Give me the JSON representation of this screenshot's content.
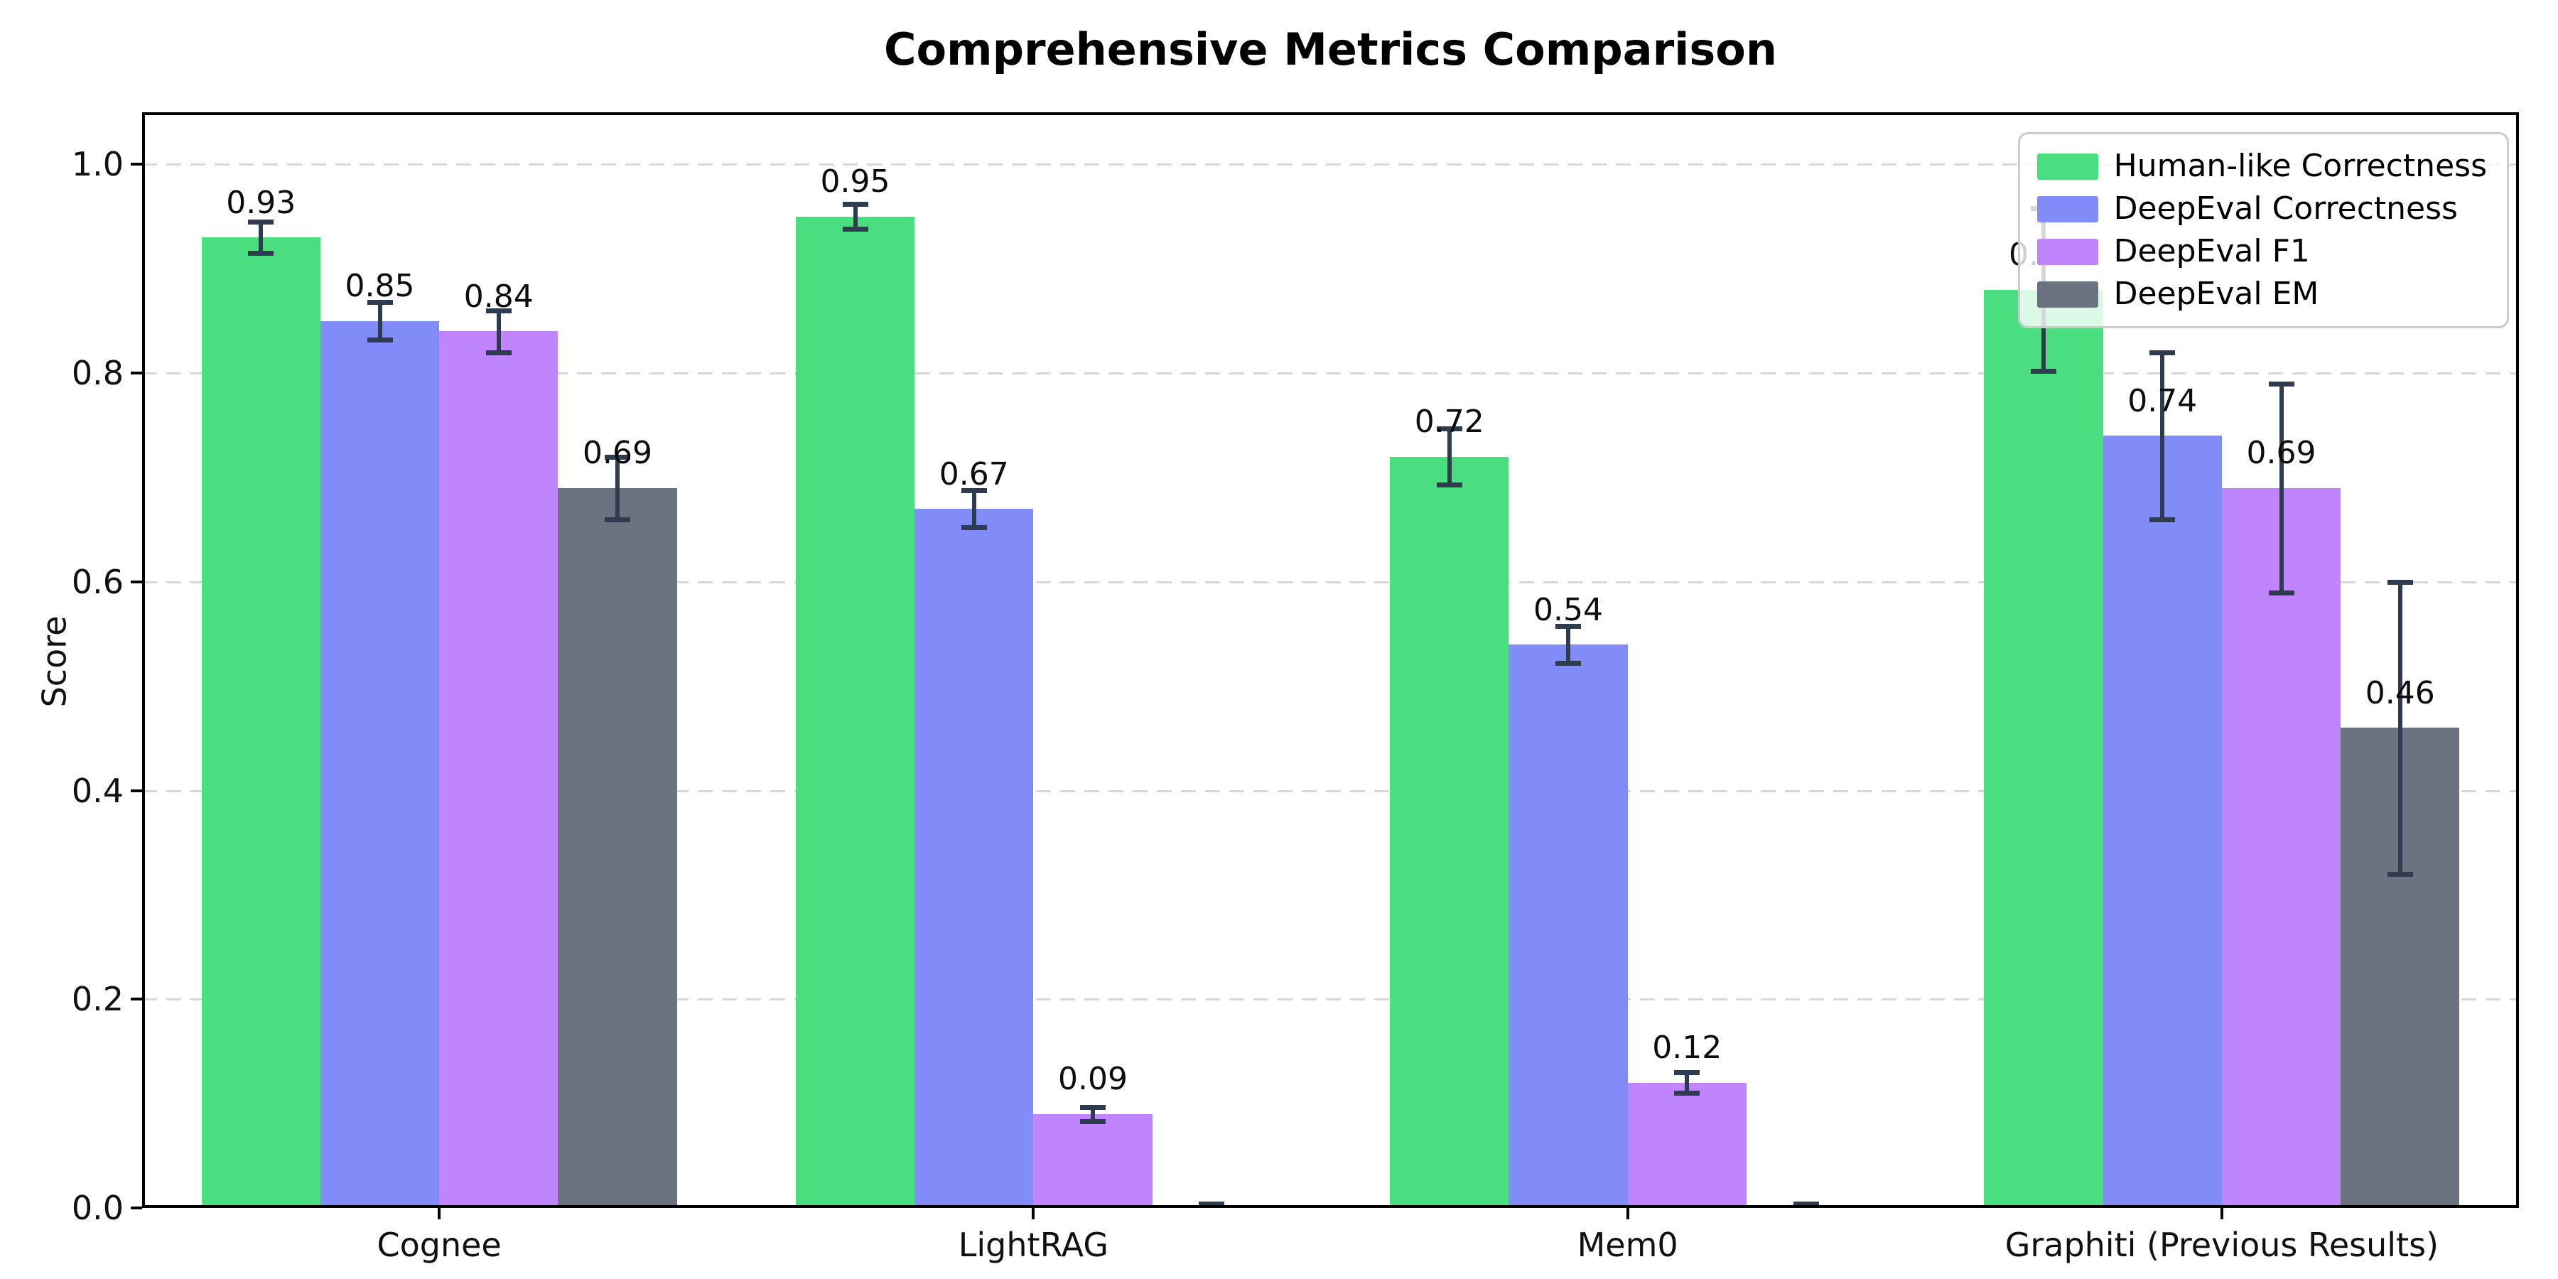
{
  "chart_data": {
    "type": "bar",
    "title": "Comprehensive Metrics Comparison",
    "ylabel": "Score",
    "xlabel": "",
    "categories": [
      "Cognee",
      "LightRAG",
      "Mem0",
      "Graphiti (Previous Results)"
    ],
    "series": [
      {
        "name": "Human-like Correctness",
        "color": "#4ade80",
        "values": [
          0.93,
          0.95,
          0.72,
          0.88
        ],
        "errors": [
          0.015,
          0.012,
          0.027,
          0.078
        ],
        "labels": [
          "0.93",
          "0.95",
          "0.72",
          "0.88"
        ]
      },
      {
        "name": "DeepEval Correctness",
        "color": "#818cf8",
        "values": [
          0.85,
          0.67,
          0.54,
          0.74
        ],
        "errors": [
          0.018,
          0.018,
          0.018,
          0.08
        ],
        "labels": [
          "0.85",
          "0.67",
          "0.54",
          "0.74"
        ]
      },
      {
        "name": "DeepEval F1",
        "color": "#c084fc",
        "values": [
          0.84,
          0.09,
          0.12,
          0.69
        ],
        "errors": [
          0.02,
          0.007,
          0.01,
          0.1
        ],
        "labels": [
          "0.84",
          "0.09",
          "0.12",
          "0.69"
        ]
      },
      {
        "name": "DeepEval EM",
        "color": "#6b7280",
        "values": [
          0.69,
          0.0,
          0.0,
          0.46
        ],
        "errors": [
          0.03,
          0.004,
          0.004,
          0.14
        ],
        "labels": [
          "0.69",
          "",
          "",
          "0.46"
        ]
      }
    ],
    "ylim": [
      0,
      1.05
    ],
    "ytick_values": [
      0.0,
      0.2,
      0.4,
      0.6,
      0.8,
      1.0
    ],
    "ytick_labels": [
      "0.0",
      "0.2",
      "0.4",
      "0.6",
      "0.8",
      "1.0"
    ],
    "grid": {
      "axis": "y",
      "style": "dashed",
      "color": "#d8d8d8"
    },
    "legend_position": "upper right",
    "error_bar_color": "#2f3b4e",
    "spine_color": "#000000",
    "background": "#ffffff",
    "bar_width_fraction": 0.2,
    "value_label_offset": 0.033
  }
}
